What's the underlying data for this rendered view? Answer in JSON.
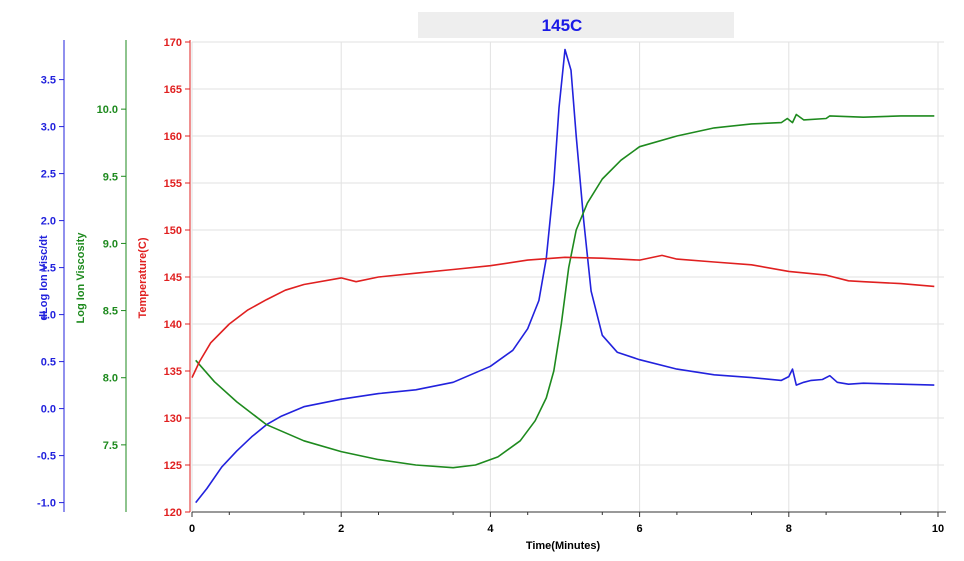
{
  "chart_data": {
    "type": "line",
    "title": "145C",
    "xlabel": "Time(Minutes)",
    "xlim": [
      0,
      10
    ],
    "x_ticks": [
      0,
      2,
      4,
      6,
      8,
      10
    ],
    "grid": true,
    "colors": {
      "title": "#1a1ae6",
      "dlog": "#2222dd",
      "logvisc": "#1e8a1e",
      "temp": "#e02020",
      "axis_x": "#333333"
    },
    "axes": {
      "dlog": {
        "label": "dLog Ion Visc/dt",
        "ylim": [
          -1.1,
          3.9
        ],
        "ticks": [
          -1.0,
          -0.5,
          0.0,
          0.5,
          1.0,
          1.5,
          2.0,
          2.5,
          3.0,
          3.5
        ],
        "tick_labels": [
          "-1.0",
          "-0.5",
          "0.0",
          "0.5",
          "1.0",
          "1.5",
          "2.0",
          "2.5",
          "3.0",
          "3.5"
        ]
      },
      "logvisc": {
        "label": "Log Ion Viscosity",
        "ylim": [
          7.0,
          10.5
        ],
        "ticks": [
          7.5,
          8.0,
          8.5,
          9.0,
          9.5,
          10.0
        ],
        "tick_labels": [
          "7.5",
          "8.0",
          "8.5",
          "9.0",
          "9.5",
          "10.0"
        ]
      },
      "temp": {
        "label": "Temperature(C)",
        "ylim": [
          120,
          170
        ],
        "ticks": [
          120,
          125,
          130,
          135,
          140,
          145,
          150,
          155,
          160,
          165,
          170
        ],
        "tick_labels": [
          "120",
          "125",
          "130",
          "135",
          "140",
          "145",
          "150",
          "155",
          "160",
          "165",
          "170"
        ]
      }
    },
    "series": [
      {
        "axis": "dlog",
        "x": [
          0.05,
          0.2,
          0.4,
          0.6,
          0.8,
          1.0,
          1.2,
          1.5,
          2.0,
          2.5,
          3.0,
          3.5,
          4.0,
          4.3,
          4.5,
          4.65,
          4.75,
          4.85,
          4.92,
          5.0,
          5.08,
          5.15,
          5.25,
          5.35,
          5.5,
          5.7,
          6.0,
          6.5,
          7.0,
          7.5,
          7.9,
          8.0,
          8.05,
          8.1,
          8.2,
          8.3,
          8.45,
          8.55,
          8.65,
          8.8,
          9.0,
          9.5,
          9.95
        ],
        "values": [
          -1.0,
          -0.85,
          -0.62,
          -0.45,
          -0.3,
          -0.17,
          -0.08,
          0.02,
          0.1,
          0.16,
          0.2,
          0.28,
          0.45,
          0.62,
          0.85,
          1.15,
          1.6,
          2.4,
          3.2,
          3.82,
          3.6,
          2.9,
          2.0,
          1.25,
          0.78,
          0.6,
          0.52,
          0.42,
          0.36,
          0.33,
          0.3,
          0.34,
          0.42,
          0.25,
          0.28,
          0.3,
          0.31,
          0.35,
          0.28,
          0.26,
          0.27,
          0.26,
          0.25
        ]
      },
      {
        "axis": "logvisc",
        "x": [
          0.05,
          0.3,
          0.6,
          1.0,
          1.5,
          2.0,
          2.5,
          3.0,
          3.5,
          3.8,
          4.1,
          4.4,
          4.6,
          4.75,
          4.85,
          4.95,
          5.05,
          5.15,
          5.3,
          5.5,
          5.75,
          6.0,
          6.5,
          7.0,
          7.5,
          7.9,
          7.98,
          8.05,
          8.1,
          8.2,
          8.5,
          8.55,
          9.0,
          9.5,
          9.95
        ],
        "values": [
          8.13,
          7.97,
          7.82,
          7.65,
          7.53,
          7.45,
          7.39,
          7.35,
          7.33,
          7.35,
          7.41,
          7.53,
          7.68,
          7.85,
          8.05,
          8.4,
          8.82,
          9.1,
          9.3,
          9.48,
          9.62,
          9.72,
          9.8,
          9.86,
          9.89,
          9.9,
          9.93,
          9.9,
          9.96,
          9.92,
          9.93,
          9.95,
          9.94,
          9.95,
          9.95
        ]
      },
      {
        "axis": "temp",
        "x": [
          0.0,
          0.1,
          0.25,
          0.5,
          0.75,
          1.0,
          1.25,
          1.5,
          2.0,
          2.2,
          2.5,
          3.0,
          3.5,
          4.0,
          4.5,
          5.0,
          5.5,
          6.0,
          6.3,
          6.5,
          7.0,
          7.5,
          8.0,
          8.5,
          8.8,
          9.0,
          9.5,
          9.95
        ],
        "values": [
          134.3,
          136.0,
          138.0,
          140.0,
          141.5,
          142.6,
          143.6,
          144.2,
          144.9,
          144.5,
          145.0,
          145.4,
          145.8,
          146.2,
          146.8,
          147.1,
          147.0,
          146.8,
          147.3,
          146.9,
          146.6,
          146.3,
          145.6,
          145.2,
          144.6,
          144.5,
          144.3,
          144.0
        ]
      }
    ]
  }
}
